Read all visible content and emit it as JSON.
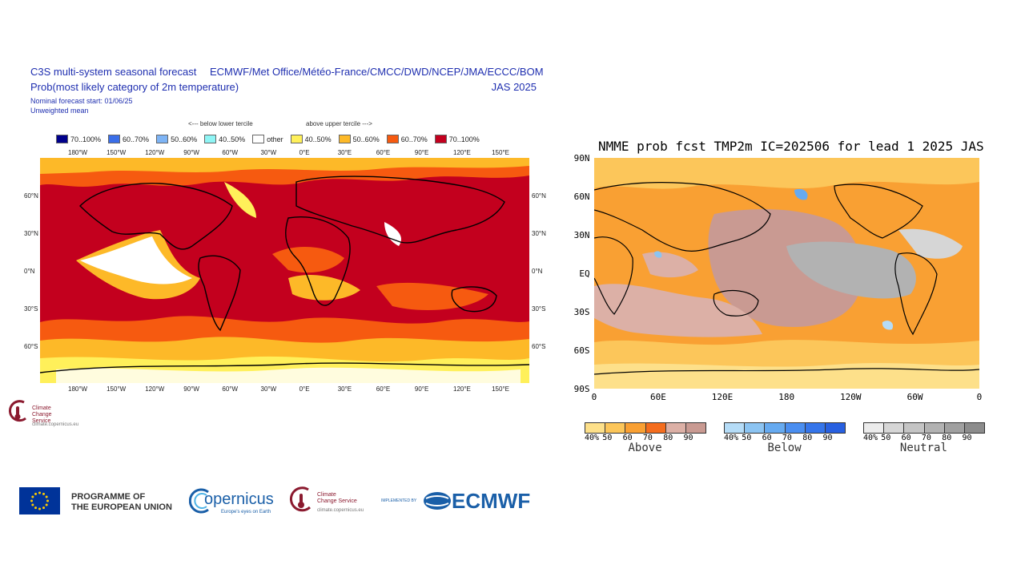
{
  "c3s": {
    "title_left_1": "C3S multi-system seasonal forecast",
    "title_left_2": "Prob(most likely category of 2m temperature)",
    "title_right_1": "ECMWF/Met Office/Météo-France/CMCC/DWD/NCEP/JMA/ECCC/BOM",
    "title_right_2": "JAS 2025",
    "start": "Nominal forecast start: 01/06/25",
    "weighting": "Unweighted mean",
    "below_label": "<--- below lower tercile",
    "above_label": "above upper tercile --->",
    "legend": [
      {
        "label": "70..100%",
        "color": "#00008b"
      },
      {
        "label": "60..70%",
        "color": "#3a6ee8"
      },
      {
        "label": "50..60%",
        "color": "#7eb4f5"
      },
      {
        "label": "40..50%",
        "color": "#8ff5f5"
      },
      {
        "label": "other",
        "color": "#ffffff"
      },
      {
        "label": "40..50%",
        "color": "#fff05a"
      },
      {
        "label": "50..60%",
        "color": "#fdb928"
      },
      {
        "label": "60..70%",
        "color": "#f65a10"
      },
      {
        "label": "70..100%",
        "color": "#c3001e"
      }
    ],
    "lon_labels": [
      "180°W",
      "150°W",
      "120°W",
      "90°W",
      "60°W",
      "30°W",
      "0°E",
      "30°E",
      "60°E",
      "90°E",
      "120°E",
      "150°E"
    ],
    "lat_labels": [
      "60°N",
      "30°N",
      "0°N",
      "30°S",
      "60°S"
    ],
    "logo_name": "Climate Change Service",
    "logo_url": "climate.copernicus.eu"
  },
  "nmme": {
    "title": "NMME prob fcst TMP2m IC=202506 for lead 1 2025 JAS",
    "lat_labels": [
      "90N",
      "60N",
      "30N",
      "EQ",
      "30S",
      "60S",
      "90S"
    ],
    "lon_labels": [
      "0",
      "60E",
      "120E",
      "180",
      "120W",
      "60W",
      "0"
    ],
    "colorbars": [
      {
        "name": "Above",
        "ticks": [
          "40%",
          "50",
          "60",
          "70",
          "80",
          "90"
        ],
        "colors": [
          "#fde08a",
          "#fcc65a",
          "#f9a033",
          "#f46d1e",
          "#dcb0a6",
          "#c99a92"
        ]
      },
      {
        "name": "Below",
        "ticks": [
          "40%",
          "50",
          "60",
          "70",
          "80",
          "90"
        ],
        "colors": [
          "#b5dcf7",
          "#8cc4f2",
          "#66aaf0",
          "#4a8ef0",
          "#3575ea",
          "#2860e0"
        ]
      },
      {
        "name": "Neutral",
        "ticks": [
          "40%",
          "50",
          "60",
          "70",
          "80",
          "90"
        ],
        "colors": [
          "#ececec",
          "#d6d6d6",
          "#c4c4c4",
          "#b2b2b2",
          "#a0a0a0",
          "#8c8c8c"
        ]
      }
    ]
  },
  "footer": {
    "eu_line1": "PROGRAMME OF",
    "eu_line2": "THE EUROPEAN UNION",
    "copernicus": "opernicus",
    "copernicus_tag": "Europe's eyes on Earth",
    "ccs_line1": "Climate",
    "ccs_line2": "Change Service",
    "ccs_url": "climate.copernicus.eu",
    "implemented_by": "IMPLEMENTED BY",
    "ecmwf": "ECMWF"
  }
}
